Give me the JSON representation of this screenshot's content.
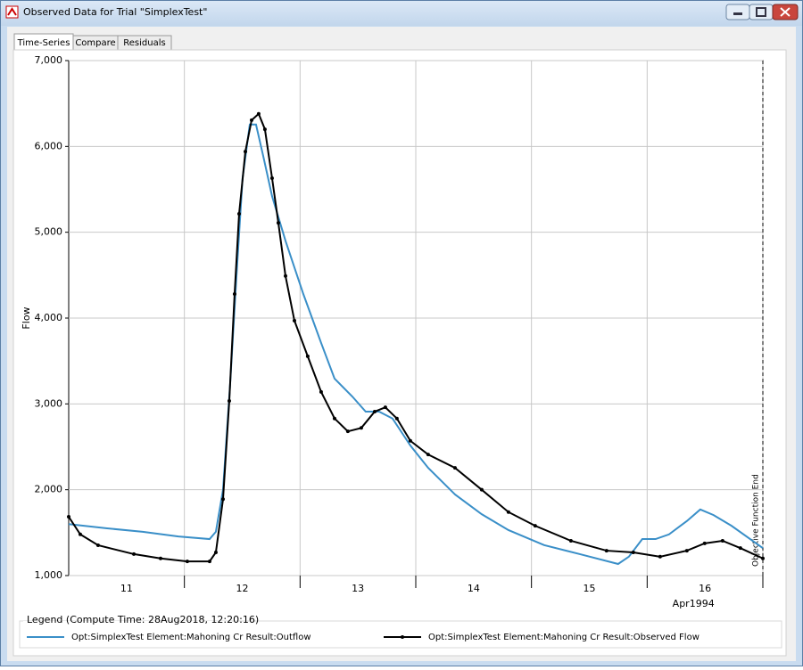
{
  "window": {
    "title": "Observed Data for Trial \"SimplexTest\""
  },
  "tabs": [
    "Time-Series",
    "Compare",
    "Residuals"
  ],
  "chart_data": {
    "type": "line",
    "ylabel": "Flow",
    "xlabel": "Apr1994",
    "ylim": [
      1000,
      7000
    ],
    "yticks": [
      {
        "value": 1000,
        "label": "1,000"
      },
      {
        "value": 2000,
        "label": "2,000"
      },
      {
        "value": 3000,
        "label": "3,000"
      },
      {
        "value": 4000,
        "label": "4,000"
      },
      {
        "value": 5000,
        "label": "5,000"
      },
      {
        "value": 6000,
        "label": "6,000"
      },
      {
        "value": 7000,
        "label": "7,000"
      }
    ],
    "xlim": [
      11,
      17
    ],
    "xgrid": [
      12,
      13,
      14,
      15,
      16,
      17
    ],
    "xtick_labels": [
      {
        "value": 11.5,
        "label": "11"
      },
      {
        "value": 12.5,
        "label": "12"
      },
      {
        "value": 13.5,
        "label": "13"
      },
      {
        "value": 14.5,
        "label": "14"
      },
      {
        "value": 15.5,
        "label": "15"
      },
      {
        "value": 16.5,
        "label": "16"
      }
    ],
    "grid": true,
    "annotation": {
      "x": 17,
      "text": "Objective Function End"
    },
    "legend_title": "Legend (Compute Time: 28Aug2018, 12:20:16)",
    "series": [
      {
        "name": "Opt:SimplexTest Element:Mahoning Cr Result:Outflow",
        "color": "#3a8fc8",
        "markers": false,
        "x": [
          11.0,
          11.332,
          11.64,
          11.948,
          12.218,
          12.272,
          12.334,
          12.396,
          12.45,
          12.503,
          12.565,
          12.619,
          12.681,
          12.758,
          12.874,
          13.028,
          13.182,
          13.298,
          13.452,
          13.567,
          13.683,
          13.799,
          13.953,
          14.107,
          14.339,
          14.57,
          14.801,
          15.109,
          15.418,
          15.749,
          15.842,
          15.958,
          16.073,
          16.189,
          16.343,
          16.459,
          16.574,
          16.729,
          17.0
        ],
        "values": [
          1600,
          1550,
          1510,
          1455,
          1425,
          1510,
          2000,
          3245,
          4490,
          5630,
          6255,
          6255,
          5890,
          5420,
          4900,
          4280,
          3710,
          3295,
          3085,
          2910,
          2910,
          2830,
          2515,
          2255,
          1945,
          1715,
          1530,
          1355,
          1250,
          1135,
          1220,
          1425,
          1425,
          1480,
          1635,
          1770,
          1705,
          1580,
          1320
        ]
      },
      {
        "name": "Opt:SimplexTest Element:Mahoning Cr Result:Observed Flow",
        "color": "#000000",
        "markers": true,
        "x": [
          11.0,
          11.1,
          11.254,
          11.563,
          11.794,
          12.025,
          12.218,
          12.272,
          12.334,
          12.388,
          12.434,
          12.473,
          12.527,
          12.581,
          12.642,
          12.696,
          12.758,
          12.812,
          12.874,
          12.951,
          13.066,
          13.182,
          13.298,
          13.413,
          13.529,
          13.645,
          13.737,
          13.837,
          13.953,
          14.107,
          14.339,
          14.57,
          14.801,
          15.032,
          15.341,
          15.649,
          15.88,
          16.112,
          16.343,
          16.497,
          16.652,
          16.806,
          17.0
        ],
        "values": [
          1685,
          1480,
          1353,
          1250,
          1200,
          1165,
          1165,
          1270,
          1890,
          3035,
          4280,
          5215,
          5940,
          6306,
          6380,
          6200,
          5630,
          5110,
          4490,
          3970,
          3555,
          3140,
          2830,
          2680,
          2720,
          2910,
          2960,
          2830,
          2570,
          2410,
          2255,
          2000,
          1740,
          1580,
          1405,
          1290,
          1270,
          1220,
          1290,
          1375,
          1405,
          1320,
          1200
        ]
      }
    ]
  }
}
